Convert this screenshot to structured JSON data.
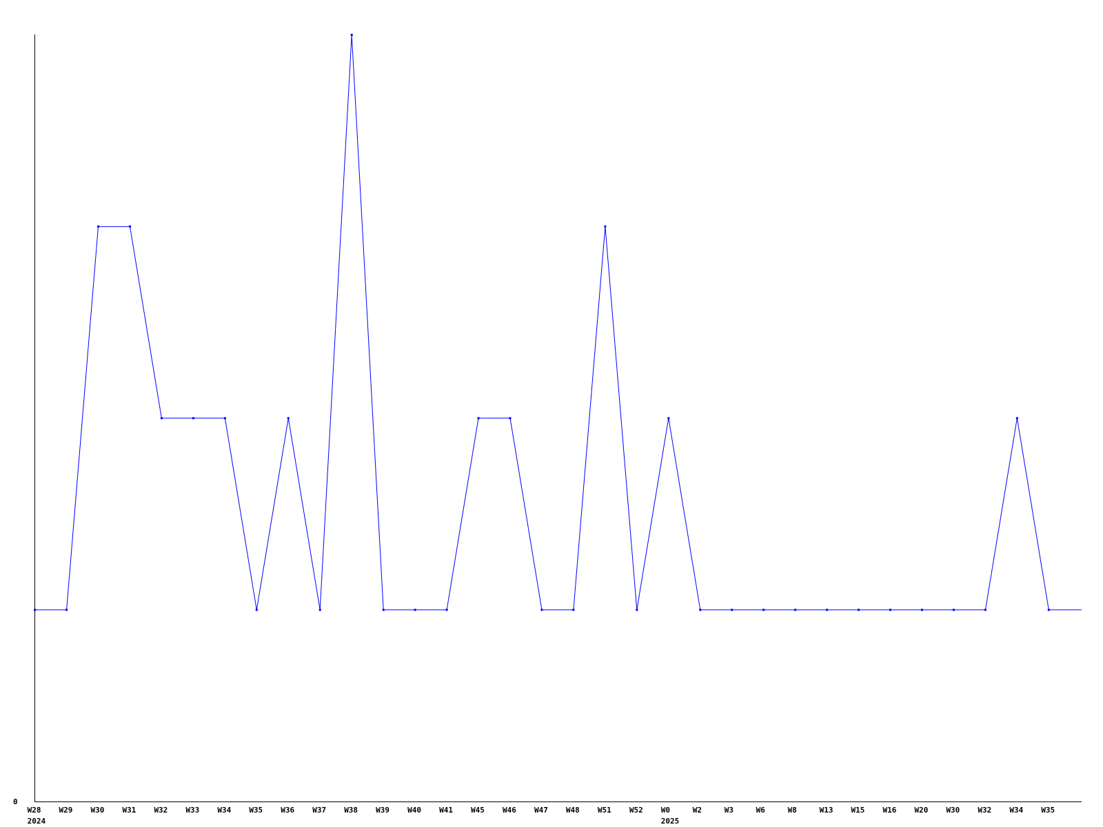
{
  "chart_data": {
    "type": "line",
    "title": "",
    "xlabel": "",
    "ylabel": "",
    "categories": [
      "W28",
      "W29",
      "W30",
      "W31",
      "W32",
      "W33",
      "W34",
      "W35",
      "W36",
      "W37",
      "W38",
      "W39",
      "W40",
      "W41",
      "W45",
      "W46",
      "W47",
      "W48",
      "W51",
      "W52",
      "W0",
      "W2",
      "W3",
      "W6",
      "W8",
      "W13",
      "W15",
      "W16",
      "W20",
      "W30",
      "W32",
      "W34",
      "W35"
    ],
    "year_labels": [
      {
        "index": 0,
        "label": "2024"
      },
      {
        "index": 20,
        "label": "2025"
      }
    ],
    "series": [
      {
        "values": [
          1,
          1,
          3,
          3,
          2,
          2,
          2,
          1,
          2,
          1,
          4,
          1,
          1,
          1,
          2,
          2,
          1,
          1,
          3,
          1,
          2,
          1,
          1,
          1,
          1,
          1,
          1,
          1,
          1,
          1,
          1,
          2,
          1
        ]
      }
    ],
    "y_tick_labels": [
      "0"
    ],
    "ylim": [
      0,
      4
    ],
    "grid": false,
    "legend": "none",
    "line_color": "#0000ff",
    "axis_color": "#000000"
  }
}
